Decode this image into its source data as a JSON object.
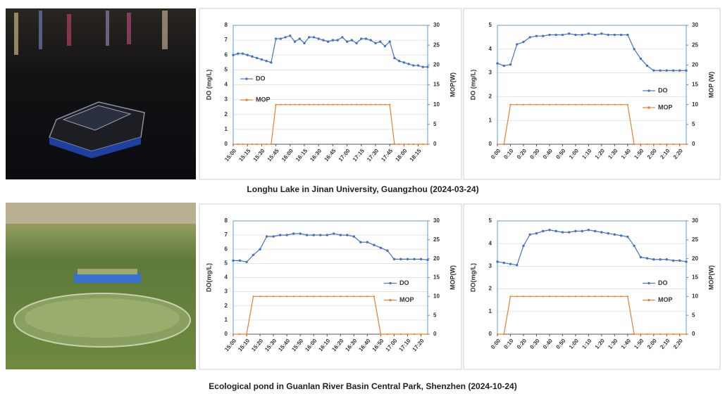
{
  "captions": [
    "Longhu Lake in Jinan University, Guangzhou (2024-03-24)",
    "Ecological pond in Guanlan River Basin Central Park, Shenzhen (2024-10-24)"
  ],
  "chart_data": [
    {
      "type": "line",
      "y_label": "DO (mg/L)",
      "y2_label": "MOP(W)",
      "legend": "left",
      "grid": true,
      "categories": [
        "15:00",
        null,
        null,
        "15:15",
        null,
        null,
        "15:30",
        null,
        null,
        "15:45",
        null,
        null,
        "16:00",
        null,
        null,
        "16:15",
        null,
        null,
        "16:30",
        null,
        null,
        "16:45",
        null,
        null,
        "17:00",
        null,
        null,
        "17:15",
        null,
        null,
        "17:30",
        null,
        null,
        "17:45",
        null,
        null,
        "18:00",
        null,
        null,
        "18:15",
        null,
        null
      ],
      "ylim": [
        0,
        8
      ],
      "yticks": [
        0,
        1,
        2,
        3,
        4,
        5,
        6,
        7,
        8
      ],
      "y2lim": [
        0,
        30
      ],
      "y2ticks": [
        0,
        5,
        10,
        15,
        20,
        25,
        30
      ],
      "series": [
        {
          "name": "DO",
          "color": "#4472c4",
          "values": [
            6.0,
            6.1,
            6.1,
            6.0,
            5.9,
            5.8,
            5.7,
            5.6,
            5.5,
            7.1,
            7.1,
            7.2,
            7.3,
            6.9,
            7.1,
            6.8,
            7.2,
            7.2,
            7.1,
            7.0,
            6.9,
            7.0,
            7.0,
            7.2,
            6.9,
            7.0,
            6.8,
            7.1,
            7.1,
            7.0,
            6.8,
            6.9,
            6.6,
            6.9,
            5.8,
            5.6,
            5.5,
            5.4,
            5.3,
            5.3,
            5.2,
            5.2
          ]
        },
        {
          "name": "MOP",
          "color": "#ed7d31",
          "axis": "y2",
          "values": [
            0,
            0,
            0,
            0,
            0,
            0,
            0,
            0,
            0,
            10,
            10,
            10,
            10,
            10,
            10,
            10,
            10,
            10,
            10,
            10,
            10,
            10,
            10,
            10,
            10,
            10,
            10,
            10,
            10,
            10,
            10,
            10,
            10,
            10,
            0,
            0,
            0,
            0,
            0,
            0,
            0,
            0
          ]
        }
      ]
    },
    {
      "type": "line",
      "y_label": "DO (mg/L)",
      "y2_label": "MOP (W)",
      "legend": "right",
      "grid": true,
      "categories": [
        "0:00",
        null,
        "0:10",
        null,
        "0:20",
        null,
        "0:30",
        null,
        "0:40",
        null,
        "0:50",
        null,
        "1:00",
        null,
        "1:10",
        null,
        "1:20",
        null,
        "1:30",
        null,
        "1:40",
        null,
        "1:50",
        null,
        "2:00",
        null,
        "2:10",
        null,
        "2:20",
        null
      ],
      "ylim": [
        0,
        5
      ],
      "yticks": [
        0,
        1,
        2,
        3,
        4,
        5
      ],
      "y2lim": [
        0,
        30
      ],
      "y2ticks": [
        0,
        5,
        10,
        15,
        20,
        25,
        30
      ],
      "series": [
        {
          "name": "DO",
          "color": "#4472c4",
          "values": [
            3.4,
            3.3,
            3.35,
            4.2,
            4.3,
            4.5,
            4.55,
            4.55,
            4.6,
            4.6,
            4.6,
            4.65,
            4.6,
            4.6,
            4.65,
            4.6,
            4.65,
            4.6,
            4.6,
            4.6,
            4.6,
            4.0,
            3.6,
            3.3,
            3.1,
            3.1,
            3.1,
            3.1,
            3.1,
            3.1
          ]
        },
        {
          "name": "MOP",
          "color": "#ed7d31",
          "axis": "y2",
          "values": [
            0,
            0,
            10,
            10,
            10,
            10,
            10,
            10,
            10,
            10,
            10,
            10,
            10,
            10,
            10,
            10,
            10,
            10,
            10,
            10,
            10,
            0,
            0,
            0,
            0,
            0,
            0,
            0,
            0,
            0
          ]
        }
      ]
    },
    {
      "type": "line",
      "y_label": "DO(mg/L)",
      "y2_label": "MOP(W)",
      "legend": "right",
      "grid": true,
      "categories": [
        "15:00",
        null,
        "15:10",
        null,
        "15:20",
        null,
        "15:30",
        null,
        "15:40",
        null,
        "15:50",
        null,
        "16:00",
        null,
        "16:10",
        null,
        "16:20",
        null,
        "16:30",
        null,
        "16:40",
        null,
        "16:50",
        null,
        "17:00",
        null,
        "17:10",
        null,
        "17:20",
        null
      ],
      "ylim": [
        0,
        8
      ],
      "yticks": [
        0,
        1,
        2,
        3,
        4,
        5,
        6,
        7,
        8
      ],
      "y2lim": [
        0,
        30
      ],
      "y2ticks": [
        0,
        5,
        10,
        15,
        20,
        25,
        30
      ],
      "series": [
        {
          "name": "DO",
          "color": "#4472c4",
          "values": [
            5.2,
            5.2,
            5.1,
            5.6,
            6.0,
            6.9,
            6.9,
            7.0,
            7.0,
            7.1,
            7.1,
            7.0,
            7.0,
            7.0,
            7.0,
            7.1,
            7.0,
            7.0,
            6.9,
            6.5,
            6.5,
            6.3,
            6.1,
            5.9,
            5.3,
            5.3,
            5.3,
            5.3,
            5.3,
            5.25
          ]
        },
        {
          "name": "MOP",
          "color": "#ed7d31",
          "axis": "y2",
          "values": [
            0,
            0,
            0,
            10,
            10,
            10,
            10,
            10,
            10,
            10,
            10,
            10,
            10,
            10,
            10,
            10,
            10,
            10,
            10,
            10,
            10,
            10,
            0,
            0,
            0,
            0,
            0,
            0,
            0,
            0
          ]
        }
      ]
    },
    {
      "type": "line",
      "y_label": "DO(mg/L)",
      "y2_label": "MOP(W)",
      "legend": "right",
      "grid": true,
      "categories": [
        "0:00",
        null,
        "0:10",
        null,
        "0:20",
        null,
        "0:30",
        null,
        "0:40",
        null,
        "0:50",
        null,
        "1:00",
        null,
        "1:10",
        null,
        "1:20",
        null,
        "1:30",
        null,
        "1:40",
        null,
        "1:50",
        null,
        "2:00",
        null,
        "2:10",
        null,
        "2:20",
        null
      ],
      "ylim": [
        0,
        5
      ],
      "yticks": [
        0,
        1,
        2,
        3,
        4,
        5
      ],
      "y2lim": [
        0,
        30
      ],
      "y2ticks": [
        0,
        5,
        10,
        15,
        20,
        25,
        30
      ],
      "series": [
        {
          "name": "DO",
          "color": "#4472c4",
          "values": [
            3.2,
            3.15,
            3.1,
            3.05,
            3.9,
            4.4,
            4.45,
            4.55,
            4.6,
            4.55,
            4.5,
            4.5,
            4.55,
            4.55,
            4.6,
            4.55,
            4.5,
            4.45,
            4.4,
            4.35,
            4.3,
            3.9,
            3.4,
            3.35,
            3.3,
            3.3,
            3.3,
            3.25,
            3.25,
            3.2
          ]
        },
        {
          "name": "MOP",
          "color": "#ed7d31",
          "axis": "y2",
          "values": [
            0,
            0,
            10,
            10,
            10,
            10,
            10,
            10,
            10,
            10,
            10,
            10,
            10,
            10,
            10,
            10,
            10,
            10,
            10,
            10,
            10,
            0,
            0,
            0,
            0,
            0,
            0,
            0,
            0,
            0
          ]
        }
      ]
    }
  ]
}
